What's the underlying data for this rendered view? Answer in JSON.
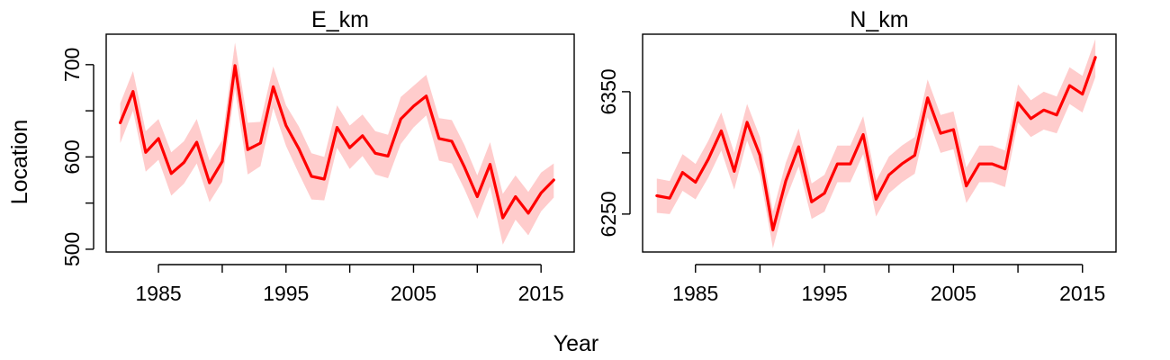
{
  "chart_data": [
    {
      "type": "line",
      "title": "E_km",
      "xlabel": "Year",
      "ylabel": "Location",
      "xlim": [
        1980.9,
        2017.6
      ],
      "ylim": [
        497,
        733
      ],
      "x_ticks": [
        1985,
        1995,
        2005,
        2015
      ],
      "x_minor_ticks": [
        1985,
        1990,
        1995,
        2000,
        2005,
        2010,
        2015
      ],
      "y_ticks": [
        500,
        600,
        700
      ],
      "y_minor_ticks": [
        500,
        550,
        600,
        650,
        700
      ],
      "grid": false,
      "colors": {
        "line": "#ff0000",
        "band": "#ffcccc"
      },
      "series": [
        {
          "x": [
            1982,
            1983,
            1984,
            1985,
            1986,
            1987,
            1988,
            1989,
            1990,
            1991,
            1992,
            1993,
            1994,
            1995,
            1996,
            1997,
            1998,
            1999,
            2000,
            2001,
            2002,
            2003,
            2004,
            2005,
            2006,
            2007,
            2008,
            2009,
            2010,
            2011,
            2012,
            2013,
            2014,
            2015,
            2016
          ],
          "values": [
            637,
            671,
            605,
            620,
            582,
            594,
            616,
            572,
            595,
            699,
            608,
            615,
            676,
            634,
            609,
            579,
            576,
            632,
            610,
            623,
            604,
            601,
            641,
            655,
            666,
            620,
            617,
            589,
            557,
            592,
            534,
            557,
            539,
            561,
            575
          ],
          "lower": [
            615,
            650,
            584,
            597,
            558,
            571,
            593,
            551,
            573,
            674,
            581,
            590,
            653,
            612,
            582,
            554,
            553,
            610,
            587,
            601,
            581,
            577,
            614,
            632,
            645,
            596,
            593,
            565,
            533,
            568,
            505,
            532,
            515,
            541,
            556
          ],
          "upper": [
            658,
            693,
            628,
            641,
            605,
            617,
            641,
            596,
            618,
            724,
            637,
            638,
            698,
            656,
            633,
            604,
            600,
            656,
            634,
            646,
            628,
            624,
            665,
            677,
            689,
            642,
            640,
            613,
            580,
            616,
            560,
            580,
            562,
            583,
            593
          ]
        }
      ]
    },
    {
      "type": "line",
      "title": "N_km",
      "xlabel": "Year",
      "ylabel": "",
      "xlim": [
        1980.9,
        2017.6
      ],
      "ylim": [
        6219,
        6397
      ],
      "x_ticks": [
        1985,
        1995,
        2005,
        2015
      ],
      "x_minor_ticks": [
        1985,
        1990,
        1995,
        2000,
        2005,
        2010,
        2015
      ],
      "y_ticks": [
        6250,
        6350
      ],
      "y_minor_ticks": [
        6250,
        6300,
        6350
      ],
      "grid": false,
      "colors": {
        "line": "#ff0000",
        "band": "#ffcccc"
      },
      "series": [
        {
          "x": [
            1982,
            1983,
            1984,
            1985,
            1986,
            1987,
            1988,
            1989,
            1990,
            1991,
            1992,
            1993,
            1994,
            1995,
            1996,
            1997,
            1998,
            1999,
            2000,
            2001,
            2002,
            2003,
            2004,
            2005,
            2006,
            2007,
            2008,
            2009,
            2010,
            2011,
            2012,
            2013,
            2014,
            2015,
            2016
          ],
          "values": [
            6265,
            6263,
            6284,
            6276,
            6295,
            6318,
            6285,
            6325,
            6298,
            6237,
            6277,
            6305,
            6260,
            6267,
            6291,
            6291,
            6315,
            6262,
            6282,
            6291,
            6298,
            6345,
            6316,
            6319,
            6273,
            6291,
            6291,
            6287,
            6341,
            6328,
            6335,
            6331,
            6355,
            6348,
            6378
          ],
          "lower": [
            6251,
            6250,
            6269,
            6262,
            6280,
            6302,
            6270,
            6310,
            6282,
            6222,
            6262,
            6289,
            6246,
            6252,
            6276,
            6276,
            6299,
            6248,
            6267,
            6276,
            6283,
            6329,
            6300,
            6303,
            6259,
            6276,
            6276,
            6272,
            6325,
            6313,
            6319,
            6316,
            6340,
            6333,
            6362
          ],
          "upper": [
            6279,
            6277,
            6299,
            6291,
            6310,
            6333,
            6300,
            6340,
            6313,
            6252,
            6292,
            6320,
            6275,
            6282,
            6306,
            6306,
            6330,
            6277,
            6297,
            6306,
            6313,
            6360,
            6331,
            6334,
            6288,
            6306,
            6306,
            6302,
            6356,
            6343,
            6350,
            6346,
            6370,
            6363,
            6393
          ]
        }
      ]
    }
  ]
}
